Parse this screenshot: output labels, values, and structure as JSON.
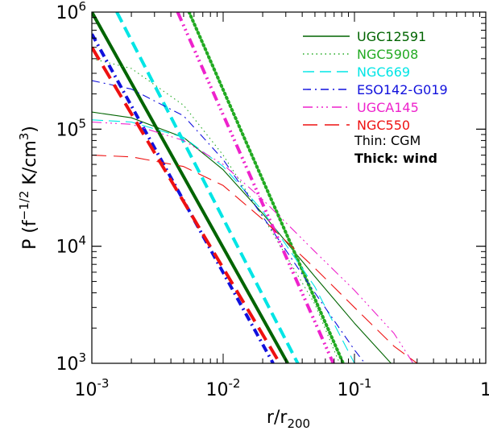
{
  "chart_data": {
    "type": "line",
    "xlabel": {
      "main": "r/r",
      "sub": "200"
    },
    "ylabel": {
      "pre": "P (f",
      "sup": "−1/2",
      "mid": " K/cm",
      "sup2": "3",
      "post": ")"
    },
    "xscale": "log",
    "yscale": "log",
    "xlim": [
      0.001,
      1
    ],
    "ylim": [
      1000,
      1000000
    ],
    "grid": false,
    "legend_position": "top-right",
    "x_tick_labels": [
      {
        "value": 0.001,
        "base": "10",
        "exp": "-3"
      },
      {
        "value": 0.01,
        "base": "10",
        "exp": "-2"
      },
      {
        "value": 0.1,
        "base": "10",
        "exp": "-1"
      },
      {
        "value": 1,
        "base": "1",
        "exp": ""
      }
    ],
    "y_tick_labels": [
      {
        "value": 1000,
        "base": "10",
        "exp": "3"
      },
      {
        "value": 10000,
        "base": "10",
        "exp": "4"
      },
      {
        "value": 100000,
        "base": "10",
        "exp": "5"
      },
      {
        "value": 1000000,
        "base": "10",
        "exp": "6"
      }
    ],
    "legend_notes": [
      "Thin: CGM",
      "Thick: wind"
    ],
    "series": [
      {
        "name": "UGC12591",
        "color": "#006400",
        "dash": "solid",
        "label_color": "#006400",
        "cgm": [
          [
            0.001,
            140000
          ],
          [
            0.002,
            125000
          ],
          [
            0.005,
            85000
          ],
          [
            0.01,
            45000
          ],
          [
            0.02,
            19000
          ],
          [
            0.05,
            5500
          ],
          [
            0.1,
            2200
          ],
          [
            0.19,
            1000
          ]
        ],
        "wind": [
          [
            0.001,
            1000000
          ],
          [
            0.031,
            1000
          ]
        ]
      },
      {
        "name": "NGC5908",
        "color": "#22aa22",
        "dash": "dotted",
        "label_color": "#22aa22",
        "cgm": [
          [
            0.001,
            400000
          ],
          [
            0.002,
            330000
          ],
          [
            0.005,
            160000
          ],
          [
            0.01,
            60000
          ],
          [
            0.02,
            18000
          ],
          [
            0.05,
            3200
          ],
          [
            0.077,
            1000
          ]
        ],
        "wind": [
          [
            0.0055,
            1000000
          ],
          [
            0.082,
            1000
          ]
        ]
      },
      {
        "name": "NGC669",
        "color": "#00e5e5",
        "dash": "longdash",
        "label_color": "#00e5e5",
        "cgm": [
          [
            0.001,
            120000
          ],
          [
            0.002,
            115000
          ],
          [
            0.005,
            85000
          ],
          [
            0.01,
            48000
          ],
          [
            0.02,
            20000
          ],
          [
            0.05,
            4500
          ],
          [
            0.1,
            1000
          ]
        ],
        "wind": [
          [
            0.00155,
            1000000
          ],
          [
            0.037,
            1000
          ]
        ]
      },
      {
        "name": "ESO142-G019",
        "color": "#1111dd",
        "dash": "dashdot",
        "label_color": "#1111dd",
        "cgm": [
          [
            0.001,
            260000
          ],
          [
            0.002,
            220000
          ],
          [
            0.005,
            130000
          ],
          [
            0.01,
            55000
          ],
          [
            0.02,
            18000
          ],
          [
            0.05,
            4000
          ],
          [
            0.1,
            1300
          ],
          [
            0.12,
            1000
          ]
        ],
        "wind": [
          [
            0.001,
            650000
          ],
          [
            0.024,
            1000
          ]
        ]
      },
      {
        "name": "UGCA145",
        "color": "#ee22cc",
        "dash": "dashdotdot",
        "label_color": "#ee22cc",
        "cgm": [
          [
            0.001,
            115000
          ],
          [
            0.002,
            110000
          ],
          [
            0.005,
            80000
          ],
          [
            0.01,
            50000
          ],
          [
            0.02,
            25000
          ],
          [
            0.05,
            9000
          ],
          [
            0.1,
            4200
          ],
          [
            0.2,
            1800
          ],
          [
            0.28,
            1000
          ]
        ],
        "wind": [
          [
            0.0045,
            1000000
          ],
          [
            0.069,
            1000
          ]
        ]
      },
      {
        "name": "NGC550",
        "color": "#ee1111",
        "dash": "widedash",
        "label_color": "#ee1111",
        "cgm": [
          [
            0.001,
            60000
          ],
          [
            0.002,
            58000
          ],
          [
            0.005,
            48000
          ],
          [
            0.01,
            33000
          ],
          [
            0.02,
            17000
          ],
          [
            0.05,
            6500
          ],
          [
            0.1,
            3000
          ],
          [
            0.2,
            1400
          ],
          [
            0.3,
            1000
          ]
        ],
        "wind": [
          [
            0.001,
            500000
          ],
          [
            0.027,
            1000
          ]
        ]
      }
    ]
  }
}
